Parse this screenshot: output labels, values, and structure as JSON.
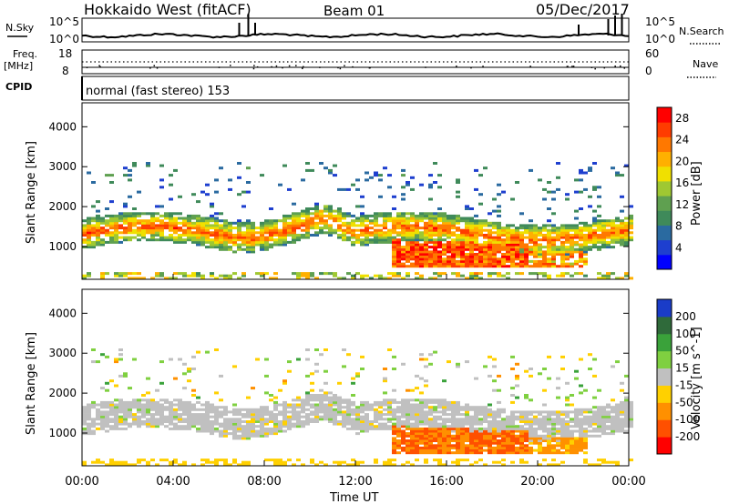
{
  "header": {
    "station": "Hokkaido West (fitACF)",
    "beam": "Beam 01",
    "date": "05/Dec/2017"
  },
  "aux": {
    "nsky_label": "N.Sky",
    "nsky_ticks": [
      "10^5",
      "10^0"
    ],
    "nsearch_label": "N.Search",
    "nsearch_ticks": [
      "10^5",
      "10^0"
    ],
    "freq_label": "Freq.",
    "freq_unit": "[MHz]",
    "freq_ticks": [
      "18",
      "8"
    ],
    "nave_label": "Nave",
    "nave_ticks": [
      "60",
      "0"
    ],
    "cpid_label": "CPID",
    "mode_text": "normal (fast stereo) 153"
  },
  "x_axis": {
    "label": "Time UT",
    "ticks": [
      "00:00",
      "04:00",
      "08:00",
      "12:00",
      "16:00",
      "20:00",
      "00:00"
    ]
  },
  "chart_data": [
    {
      "type": "heatmap",
      "panel": "power",
      "ylabel": "Slant Range [km]",
      "yticks": [
        1000,
        2000,
        3000,
        4000
      ],
      "ylim": [
        180,
        4600
      ],
      "xlim_hours": [
        0,
        24
      ],
      "colorbar": {
        "label": "Power [dB]",
        "ticks": [
          4,
          8,
          12,
          16,
          20,
          24,
          28
        ],
        "range": [
          0,
          30
        ],
        "colors": [
          "#0000ff",
          "#1e3fcf",
          "#2a6aa0",
          "#3f8a5a",
          "#5fa050",
          "#9fc832",
          "#f0e000",
          "#ffb000",
          "#ff7800",
          "#ff3c00",
          "#ff0000"
        ]
      },
      "features": [
        {
          "desc": "main band",
          "t": [
            0,
            24
          ],
          "range_km": [
            900,
            1700
          ],
          "value_db": 14
        },
        {
          "desc": "strong region",
          "t": [
            14,
            19
          ],
          "range_km": [
            500,
            1100
          ],
          "value_db": 26
        },
        {
          "desc": "high range echoes",
          "t": [
            7.5,
            10.5
          ],
          "range_km": [
            1600,
            2800
          ],
          "value_db": 16
        }
      ]
    },
    {
      "type": "heatmap",
      "panel": "velocity",
      "ylabel": "Slant Range [km]",
      "yticks": [
        1000,
        2000,
        3000,
        4000
      ],
      "ylim": [
        180,
        4600
      ],
      "xlim_hours": [
        0,
        24
      ],
      "colorbar": {
        "label": "Velocity [m s^-1]",
        "ticks": [
          200,
          100,
          50,
          15,
          -15,
          -50,
          -100,
          -200
        ],
        "colors": [
          "#1a3cc8",
          "#2f6a3a",
          "#3aa23a",
          "#7fd040",
          "#c0c0c0",
          "#ffd000",
          "#ff9000",
          "#ff5000",
          "#ff0000"
        ]
      },
      "features": [
        {
          "desc": "ground scatter band",
          "t": [
            0,
            24
          ],
          "range_km": [
            900,
            2000
          ],
          "value_ms": 0
        },
        {
          "desc": "negative velocity region",
          "t": [
            13.5,
            22
          ],
          "range_km": [
            400,
            1000
          ],
          "value_ms": -100
        }
      ]
    }
  ]
}
